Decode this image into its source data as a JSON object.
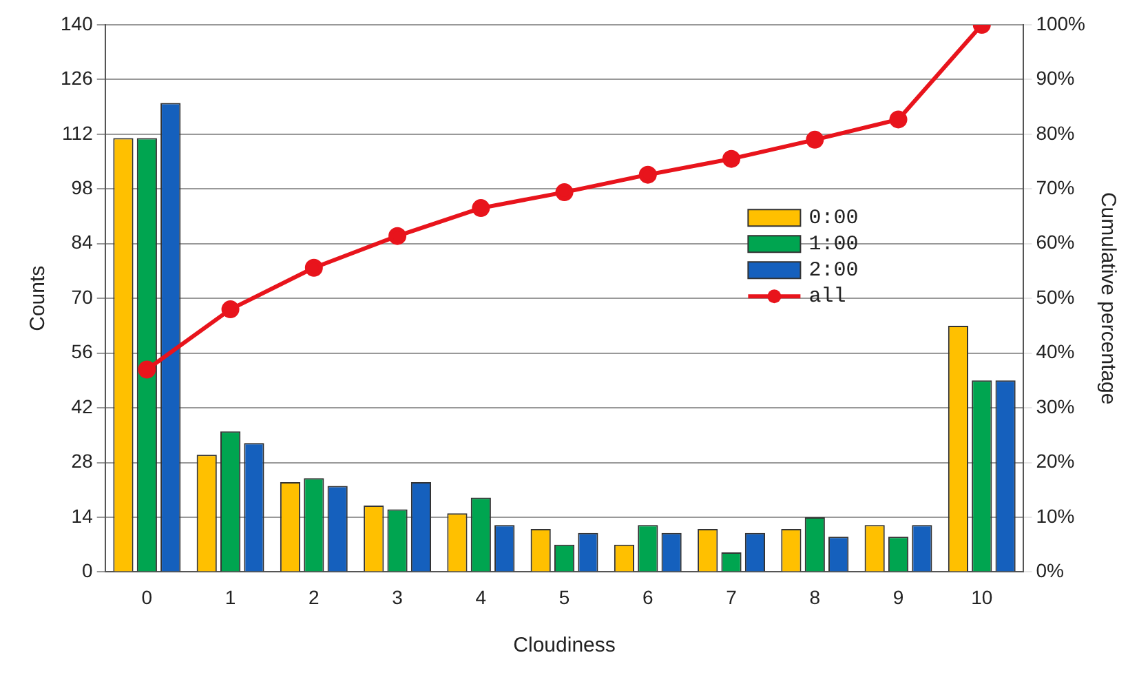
{
  "chart_data": {
    "type": "bar",
    "xlabel": "Cloudiness",
    "ylabel": "Counts",
    "y2label": "Cumulative percentage",
    "categories": [
      "0",
      "1",
      "2",
      "3",
      "4",
      "5",
      "6",
      "7",
      "8",
      "9",
      "10"
    ],
    "series": [
      {
        "name": "0:00",
        "color": "#ffc000",
        "values": [
          111,
          30,
          23,
          17,
          15,
          11,
          7,
          11,
          11,
          12,
          63
        ]
      },
      {
        "name": "1:00",
        "color": "#00a550",
        "values": [
          111,
          36,
          24,
          16,
          19,
          7,
          12,
          5,
          14,
          9,
          49
        ]
      },
      {
        "name": "2:00",
        "color": "#1560bd",
        "values": [
          120,
          33,
          22,
          23,
          12,
          10,
          10,
          10,
          9,
          12,
          49
        ]
      },
      {
        "name": "all",
        "type": "line",
        "axis": "y2",
        "color": "#e8141c",
        "marker": "circle",
        "values": [
          37,
          48,
          55.6,
          61.4,
          66.5,
          69.4,
          72.6,
          75.5,
          79,
          82.7,
          100
        ]
      }
    ],
    "ylim": [
      0,
      140
    ],
    "yticks": [
      0,
      14,
      28,
      42,
      56,
      70,
      84,
      98,
      112,
      126,
      140
    ],
    "y2lim": [
      0,
      100
    ],
    "y2ticks": [
      {
        "value": 0,
        "label": "0%"
      },
      {
        "value": 10,
        "label": "10%"
      },
      {
        "value": 20,
        "label": "20%"
      },
      {
        "value": 30,
        "label": "30%"
      },
      {
        "value": 40,
        "label": "40%"
      },
      {
        "value": 50,
        "label": "50%"
      },
      {
        "value": 60,
        "label": "60%"
      },
      {
        "value": 70,
        "label": "70%"
      },
      {
        "value": 80,
        "label": "80%"
      },
      {
        "value": 90,
        "label": "90%"
      },
      {
        "value": 100,
        "label": "100%"
      }
    ],
    "grid": "y",
    "legend": "right"
  }
}
